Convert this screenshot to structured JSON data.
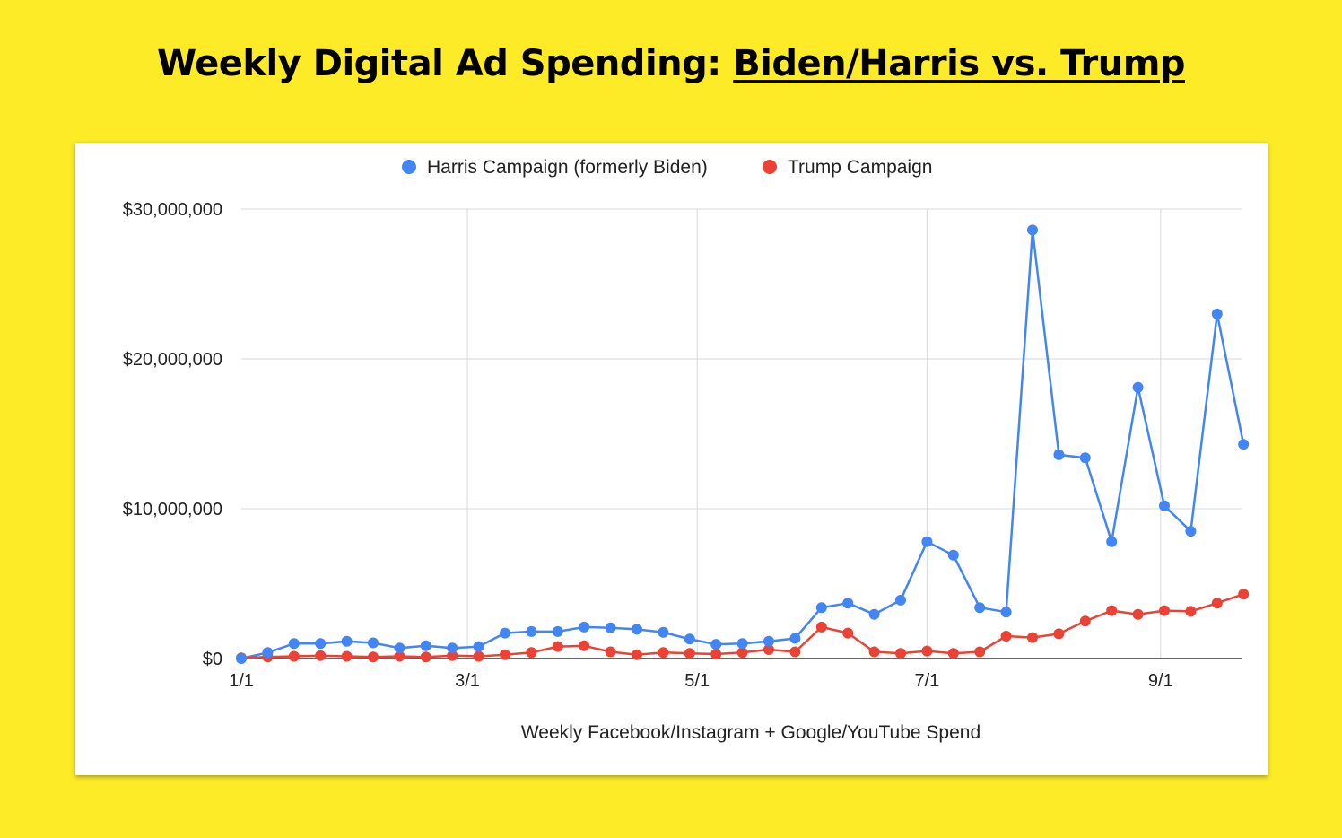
{
  "page": {
    "title_prefix": "Weekly Digital Ad Spending: ",
    "title_emphasis": "Biden/Harris vs. Trump",
    "background_color": "#FDEB28"
  },
  "chart_data": {
    "type": "line",
    "title": "",
    "xlabel": "Weekly Facebook/Instagram + Google/YouTube Spend",
    "ylabel": "",
    "x_tick_labels": [
      "1/1",
      "3/1",
      "5/1",
      "7/1",
      "9/1"
    ],
    "y_tick_labels": [
      "$0",
      "$10,000,000",
      "$20,000,000",
      "$30,000,000"
    ],
    "y_ticks": [
      0,
      10000000,
      20000000,
      30000000
    ],
    "ylim": [
      0,
      30000000
    ],
    "grid": true,
    "legend_position": "top",
    "x_start": "1/1",
    "x_interval_days": 7,
    "series": [
      {
        "name": "Harris Campaign (formerly Biden)",
        "color": "#4285F4",
        "values": [
          0,
          400000,
          1000000,
          1000000,
          1150000,
          1050000,
          700000,
          850000,
          700000,
          800000,
          1700000,
          1800000,
          1800000,
          2100000,
          2050000,
          1950000,
          1750000,
          1300000,
          950000,
          1000000,
          1150000,
          1350000,
          3400000,
          3700000,
          2950000,
          3900000,
          7800000,
          6900000,
          3400000,
          3100000,
          28600000,
          13600000,
          13400000,
          7800000,
          18100000,
          10200000,
          8500000,
          23000000,
          14300000
        ]
      },
      {
        "name": "Trump Campaign",
        "color": "#EA4335",
        "values": [
          50000,
          100000,
          150000,
          200000,
          150000,
          100000,
          150000,
          100000,
          200000,
          150000,
          250000,
          400000,
          800000,
          850000,
          450000,
          250000,
          400000,
          350000,
          300000,
          400000,
          600000,
          450000,
          2100000,
          1700000,
          450000,
          350000,
          500000,
          350000,
          450000,
          1500000,
          1400000,
          1650000,
          2500000,
          3200000,
          2950000,
          3200000,
          3150000,
          3700000,
          4300000
        ]
      }
    ]
  }
}
